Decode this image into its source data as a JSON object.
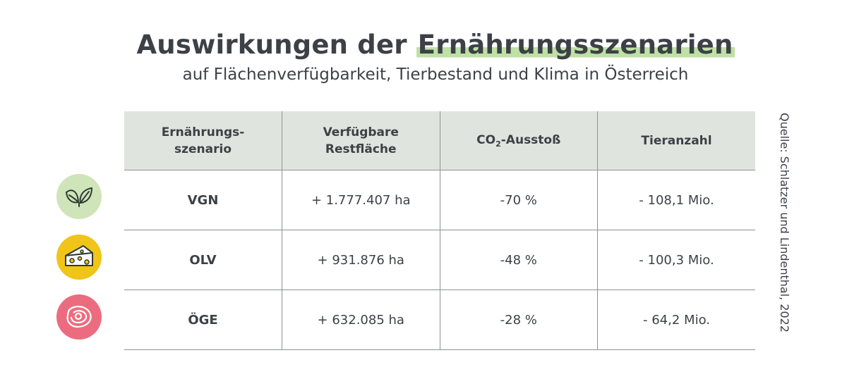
{
  "title": {
    "plain": "Auswirkungen der ",
    "highlight": "Ernährungsszenarien"
  },
  "subtitle": "auf Flächenverfügbarkeit, Tierbestand und Klima in Österreich",
  "table": {
    "headers": {
      "scenario": "Ernährungs- szenario",
      "area": "Verfügbare Restfläche",
      "co2_prefix": "CO",
      "co2_sub": "2",
      "co2_suffix": "-Ausstoß",
      "animals": "Tieranzahl"
    },
    "rows": [
      {
        "scenario": "VGN",
        "area": "+ 1.777.407 ha",
        "co2": "-70 %",
        "animals": "- 108,1 Mio.",
        "icon": "leaf-icon",
        "color": "#cfe4b9"
      },
      {
        "scenario": "OLV",
        "area": "+ 931.876 ha",
        "co2": "-48 %",
        "animals": "- 100,3 Mio.",
        "icon": "cheese-icon",
        "color": "#f0c419"
      },
      {
        "scenario": "ÖGE",
        "area": "+ 632.085 ha",
        "co2": "-28 %",
        "animals": "- 64,2 Mio.",
        "icon": "meat-icon",
        "color": "#ec6c7f"
      }
    ]
  },
  "source": "Quelle: Schlatzer und Lindenthal, 2022",
  "colors": {
    "text": "#3d4147",
    "header_bg": "#dfe5de",
    "highlight": "#bfe0a6",
    "border": "#8e9392"
  }
}
